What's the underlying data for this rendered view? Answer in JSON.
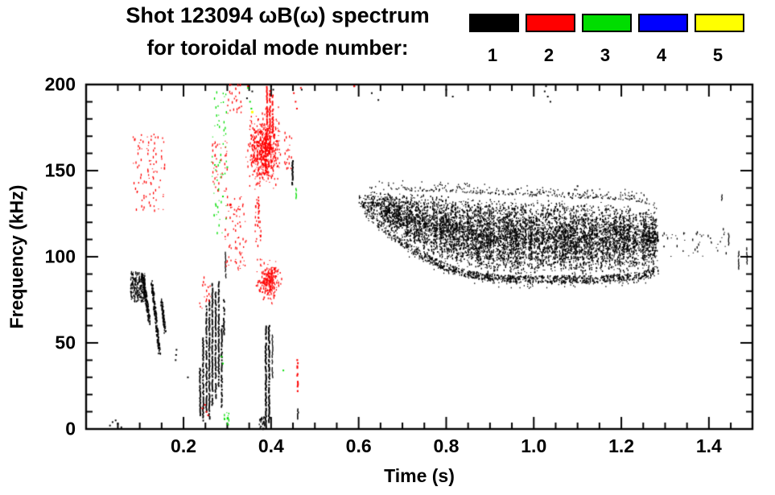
{
  "title": {
    "line1": "Shot 123094 ωB(ω) spectrum",
    "line2": "for toroidal mode number:"
  },
  "legend": {
    "items": [
      {
        "label": "1",
        "color": "#000000"
      },
      {
        "label": "2",
        "color": "#ff0000"
      },
      {
        "label": "3",
        "color": "#00dd00"
      },
      {
        "label": "4",
        "color": "#0000ff"
      },
      {
        "label": "5",
        "color": "#ffff00"
      }
    ]
  },
  "axes": {
    "x": {
      "label": "Time (s)",
      "major_ticks": [
        {
          "value": 0.2,
          "label": "0.2"
        },
        {
          "value": 0.4,
          "label": "0.4"
        },
        {
          "value": 0.6,
          "label": "0.6"
        },
        {
          "value": 0.8,
          "label": "0.8"
        },
        {
          "value": 1.0,
          "label": "1.0"
        },
        {
          "value": 1.2,
          "label": "1.2"
        },
        {
          "value": 1.4,
          "label": "1.4"
        }
      ],
      "minor_step": 0.05,
      "range": [
        0,
        1.5
      ]
    },
    "y": {
      "label": "Frequency (kHz)",
      "major_ticks": [
        {
          "value": 0,
          "label": "0"
        },
        {
          "value": 50,
          "label": "50"
        },
        {
          "value": 100,
          "label": "100"
        },
        {
          "value": 150,
          "label": "150"
        },
        {
          "value": 200,
          "label": "200"
        }
      ],
      "minor_step": 10,
      "range": [
        0,
        200
      ]
    }
  },
  "chart_data": {
    "type": "scatter",
    "title": "Shot 123094 ωB(ω) spectrum for toroidal mode number:",
    "xlabel": "Time (s)",
    "ylabel": "Frequency (kHz)",
    "xlim": [
      0,
      1.5
    ],
    "ylim": [
      0,
      200
    ],
    "grid": false,
    "legend_position": "top",
    "series": [
      {
        "name": "n = 1",
        "mode": 1,
        "color": "#000000",
        "clusters": [
          {
            "kind": "points",
            "size": 2,
            "pts": [
              [
                0.032,
                2
              ],
              [
                0.038,
                4
              ],
              [
                0.045,
                5
              ],
              [
                0.05,
                3
              ],
              [
                0.058,
                1
              ],
              [
                0.182,
                40
              ],
              [
                0.183,
                43
              ],
              [
                0.184,
                46
              ],
              [
                0.21,
                30
              ]
            ]
          },
          {
            "kind": "blob",
            "t": [
              0.079,
              0.112
            ],
            "f": [
              74,
              91
            ],
            "n": 240
          },
          {
            "kind": "chirp",
            "from": [
              0.108,
              88
            ],
            "to": [
              0.122,
              62
            ],
            "spread": [
              0.005,
              4
            ],
            "n": 150
          },
          {
            "kind": "chirp",
            "from": [
              0.128,
              85
            ],
            "to": [
              0.145,
              44
            ],
            "spread": [
              0.005,
              4
            ],
            "n": 190
          },
          {
            "kind": "chirp",
            "from": [
              0.15,
              74
            ],
            "to": [
              0.158,
              57
            ],
            "spread": [
              0.004,
              4
            ],
            "n": 90
          },
          {
            "kind": "vlines",
            "prob": 0.85,
            "lines": [
              [
                0.238,
                8,
                35
              ],
              [
                0.245,
                4,
                55
              ],
              [
                0.2525,
                10,
                72
              ],
              [
                0.259,
                6,
                75
              ],
              [
                0.266,
                14,
                85
              ],
              [
                0.2735,
                18,
                80
              ],
              [
                0.2805,
                25,
                86
              ],
              [
                0.2875,
                12,
                60
              ],
              [
                0.2925,
                55,
                75
              ],
              [
                0.296,
                88,
                103,
                1.2
              ]
            ]
          },
          {
            "kind": "vlines",
            "prob": 0.9,
            "lines": [
              [
                0.388,
                1,
                60,
                2
              ],
              [
                0.3955,
                4,
                62,
                2
              ],
              [
                0.403,
                30,
                55,
                1.2
              ],
              [
                0.449,
                142,
                156,
                2
              ],
              [
                0.4615,
                6,
                12,
                1.5
              ]
            ]
          },
          {
            "kind": "blob",
            "t": [
              0.373,
              0.385
            ],
            "f": [
              0,
              7
            ],
            "n": 30
          },
          {
            "kind": "points",
            "size": 2,
            "pts": [
              [
                0.345,
                192
              ],
              [
                0.352,
                200
              ],
              [
                0.357,
                196
              ],
              [
                0.4,
                199
              ],
              [
                0.405,
                197
              ],
              [
                0.41,
                200
              ],
              [
                0.47,
                197
              ],
              [
                0.59,
                199
              ],
              [
                0.63,
                195
              ],
              [
                0.645,
                191
              ],
              [
                0.8,
                197
              ],
              [
                0.815,
                193
              ],
              [
                1.025,
                196
              ],
              [
                1.028,
                199
              ],
              [
                1.032,
                193
              ],
              [
                1.038,
                190
              ],
              [
                1.08,
                137
              ],
              [
                1.088,
                134
              ],
              [
                1.094,
                139
              ],
              [
                1.1,
                141
              ],
              [
                1.105,
                136
              ]
            ]
          },
          {
            "kind": "vlines",
            "prob": 0.8,
            "lines": [
              [
                1.43,
                133,
                139,
                1.2
              ]
            ]
          },
          {
            "kind": "band",
            "profile": [
              [
                0.6,
                127,
                137,
                0.1
              ],
              [
                0.625,
                121,
                139,
                0.25
              ],
              [
                0.65,
                116,
                139,
                0.45
              ],
              [
                0.675,
                110,
                139,
                0.65
              ],
              [
                0.7,
                106,
                139,
                0.8
              ],
              [
                0.73,
                101,
                138,
                0.9
              ],
              [
                0.76,
                97,
                138,
                0.95
              ],
              [
                0.8,
                92,
                138,
                1.0
              ],
              [
                0.85,
                88,
                137,
                1.0
              ],
              [
                0.9,
                86,
                136,
                1.0
              ],
              [
                0.95,
                85,
                136,
                1.0
              ],
              [
                1.0,
                85,
                135,
                1.0
              ],
              [
                1.05,
                85,
                135,
                1.0
              ],
              [
                1.1,
                85,
                134,
                1.0
              ],
              [
                1.15,
                85,
                134,
                1.0
              ],
              [
                1.2,
                86,
                133,
                1.0
              ],
              [
                1.24,
                87,
                132,
                0.95
              ],
              [
                1.27,
                89,
                130,
                0.8
              ],
              [
                1.285,
                92,
                126,
                0.45
              ]
            ],
            "n": 8000,
            "halo": 520
          },
          {
            "kind": "blob",
            "t": [
              1.29,
              1.44
            ],
            "f": [
              100,
              116
            ],
            "n": 45
          },
          {
            "kind": "vlines",
            "prob": 0.75,
            "lines": [
              [
                1.445,
                107,
                114,
                1.2
              ],
              [
                1.468,
                93,
                103,
                1.2
              ],
              [
                1.487,
                96,
                106,
                1.2
              ]
            ]
          }
        ]
      },
      {
        "name": "n = 2",
        "mode": 2,
        "color": "#ff0000",
        "clusters": [
          {
            "kind": "blob",
            "t": [
              0.085,
              0.158
            ],
            "f": [
              126,
              172
            ],
            "n": 95
          },
          {
            "kind": "blob",
            "t": [
              0.235,
              0.262
            ],
            "f": [
              70,
              88
            ],
            "n": 18
          },
          {
            "kind": "points",
            "size": 2,
            "pts": [
              [
                0.243,
                12
              ],
              [
                0.249,
                14
              ],
              [
                0.2525,
                10
              ],
              [
                0.256,
                8
              ],
              [
                0.59,
                199
              ],
              [
                0.347,
                199
              ]
            ]
          },
          {
            "kind": "blob",
            "t": [
              0.262,
              0.3
            ],
            "f": [
              138,
              168
            ],
            "n": 45
          },
          {
            "kind": "blob",
            "t": [
              0.295,
              0.345
            ],
            "f": [
              92,
              136
            ],
            "n": 75
          },
          {
            "kind": "blob",
            "t": [
              0.3,
              0.335
            ],
            "f": [
              183,
              200
            ],
            "n": 28
          },
          {
            "kind": "blob",
            "gauss": true,
            "center": [
              0.383,
              163
            ],
            "sigma": [
              0.016,
              8
            ],
            "n": 430
          },
          {
            "kind": "blob",
            "t": [
              0.35,
              0.42
            ],
            "f": [
              145,
              180
            ],
            "n": 160
          },
          {
            "kind": "vlines",
            "prob": 0.7,
            "lines": [
              [
                0.388,
                150,
                172
              ],
              [
                0.391,
                168,
                200
              ],
              [
                0.3975,
                162,
                197
              ],
              [
                0.404,
                172,
                194
              ]
            ]
          },
          {
            "kind": "blob",
            "gauss": true,
            "center": [
              0.396,
              86
            ],
            "sigma": [
              0.012,
              5
            ],
            "n": 240
          },
          {
            "kind": "blob",
            "t": [
              0.363,
              0.378
            ],
            "f": [
              96,
              146
            ],
            "n": 35
          },
          {
            "kind": "vlines",
            "prob": 0.75,
            "lines": [
              [
                0.3715,
                120,
                135,
                1.5
              ]
            ]
          },
          {
            "kind": "blob",
            "t": [
              0.43,
              0.447
            ],
            "f": [
              150,
              172
            ],
            "n": 20
          },
          {
            "kind": "vlines",
            "prob": 0.5,
            "lines": [
              [
                0.4605,
                22,
                40,
                2
              ]
            ]
          },
          {
            "kind": "points",
            "size": 2,
            "pts": [
              [
                0.452,
                195
              ],
              [
                0.456,
                190
              ],
              [
                0.459,
                186
              ],
              [
                0.468,
                198
              ]
            ]
          }
        ]
      },
      {
        "name": "n = 3",
        "mode": 3,
        "color": "#00dd00",
        "clusters": [
          {
            "kind": "blob",
            "t": [
              0.263,
              0.298
            ],
            "f": [
              112,
              196
            ],
            "n": 60
          },
          {
            "kind": "points",
            "size": 2,
            "pts": [
              [
                0.347,
                198
              ],
              [
                0.352,
                190
              ],
              [
                0.355,
                186
              ],
              [
                0.3,
                152
              ],
              [
                0.29,
                135
              ],
              [
                0.287,
                42
              ],
              [
                0.29,
                38
              ]
            ]
          },
          {
            "kind": "blob",
            "t": [
              0.293,
              0.307
            ],
            "f": [
              1,
              10
            ],
            "n": 12
          },
          {
            "kind": "vlines",
            "prob": 0.7,
            "lines": [
              [
                0.457,
                134,
                141,
                1.3
              ]
            ]
          },
          {
            "kind": "points",
            "size": 2,
            "pts": [
              [
                0.428,
                34
              ]
            ]
          }
        ]
      },
      {
        "name": "n = 4",
        "mode": 4,
        "color": "#0000ff",
        "clusters": []
      },
      {
        "name": "n = 5",
        "mode": 5,
        "color": "#ffff00",
        "clusters": [
          {
            "kind": "points",
            "size": 3,
            "pts": [
              [
                0.357,
                184
              ]
            ]
          }
        ]
      }
    ]
  }
}
